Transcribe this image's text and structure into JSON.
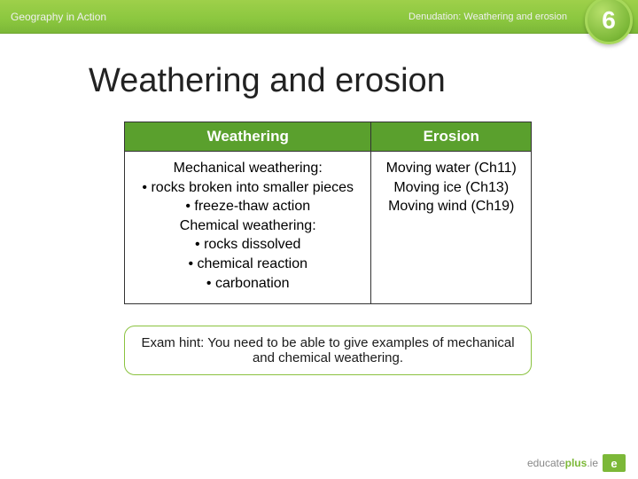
{
  "topbar": {
    "brand": "Geography in Action",
    "breadcrumb": "Denudation:  Weathering and erosion",
    "chapter_number": "6"
  },
  "title": "Weathering and erosion",
  "table": {
    "headers": [
      "Weathering",
      "Erosion"
    ],
    "cells": {
      "weathering": "Mechanical weathering:\n• rocks broken into smaller pieces\n• freeze-thaw action\nChemical weathering:\n• rocks dissolved\n• chemical reaction\n• carbonation",
      "erosion": "Moving water (Ch11)\nMoving ice (Ch13)\nMoving wind (Ch19)"
    }
  },
  "hint": "Exam hint: You need to be able to give examples of mechanical and chemical weathering.",
  "footer": {
    "educate": "educate",
    "plus": "plus",
    "ie": ".ie",
    "block": "e"
  },
  "colors": {
    "header_green": "#5aa02d",
    "topbar_gradient_top": "#9ed04a",
    "topbar_gradient_bottom": "#7cb838",
    "hint_border": "#8ac23f",
    "text": "#000000",
    "title": "#222222"
  }
}
